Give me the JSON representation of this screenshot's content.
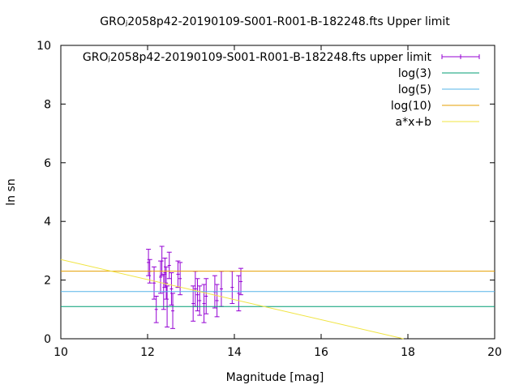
{
  "chart_data": {
    "type": "scatter",
    "title": "GROⱼ2058p42-20190109-S001-R001-B-182248.fts Upper limit",
    "xlabel": "Magnitude [mag]",
    "ylabel": "ln sn",
    "xlim": [
      10,
      20
    ],
    "ylim": [
      0,
      10
    ],
    "x_ticks": [
      "10",
      "12",
      "14",
      "16",
      "18",
      "20"
    ],
    "y_ticks": [
      "0",
      "2",
      "4",
      "6",
      "8",
      "10"
    ],
    "grid": false,
    "legend_position": "top-right",
    "series": [
      {
        "name": "GROⱼ2058p42-20190109-S001-R001-B-182248.fts upper limit",
        "style": "errorbars",
        "color": "#9400d3",
        "points": [
          {
            "x": 12.02,
            "y": 2.6,
            "err": 0.45
          },
          {
            "x": 12.05,
            "y": 2.3,
            "err": 0.4
          },
          {
            "x": 12.15,
            "y": 1.9,
            "err": 0.55
          },
          {
            "x": 12.2,
            "y": 1.0,
            "err": 0.45
          },
          {
            "x": 12.3,
            "y": 2.1,
            "err": 0.55
          },
          {
            "x": 12.33,
            "y": 2.65,
            "err": 0.5
          },
          {
            "x": 12.37,
            "y": 1.6,
            "err": 0.6
          },
          {
            "x": 12.4,
            "y": 2.25,
            "err": 0.5
          },
          {
            "x": 12.43,
            "y": 1.9,
            "err": 0.55
          },
          {
            "x": 12.45,
            "y": 1.1,
            "err": 0.7
          },
          {
            "x": 12.5,
            "y": 2.5,
            "err": 0.45
          },
          {
            "x": 12.55,
            "y": 1.7,
            "err": 0.55
          },
          {
            "x": 12.58,
            "y": 0.95,
            "err": 0.6
          },
          {
            "x": 12.7,
            "y": 2.2,
            "err": 0.45
          },
          {
            "x": 12.75,
            "y": 2.05,
            "err": 0.55
          },
          {
            "x": 13.05,
            "y": 1.2,
            "err": 0.6
          },
          {
            "x": 13.1,
            "y": 1.7,
            "err": 0.6
          },
          {
            "x": 13.15,
            "y": 1.5,
            "err": 0.55
          },
          {
            "x": 13.2,
            "y": 1.3,
            "err": 0.5
          },
          {
            "x": 13.3,
            "y": 1.2,
            "err": 0.65
          },
          {
            "x": 13.35,
            "y": 1.45,
            "err": 0.6
          },
          {
            "x": 13.55,
            "y": 1.6,
            "err": 0.55
          },
          {
            "x": 13.6,
            "y": 1.3,
            "err": 0.55
          },
          {
            "x": 13.7,
            "y": 1.7,
            "err": 0.6
          },
          {
            "x": 13.95,
            "y": 1.75,
            "err": 0.55
          },
          {
            "x": 14.1,
            "y": 1.55,
            "err": 0.6
          },
          {
            "x": 14.15,
            "y": 1.95,
            "err": 0.45
          }
        ]
      },
      {
        "name": "log(3)",
        "style": "hline",
        "color": "#009e73",
        "y": 1.0986
      },
      {
        "name": "log(5)",
        "style": "hline",
        "color": "#56b4e9",
        "y": 1.6094
      },
      {
        "name": "log(10)",
        "style": "hline",
        "color": "#e69f00",
        "y": 2.3026
      },
      {
        "name": "a*x+b",
        "style": "line",
        "color": "#f0e442",
        "x": [
          10,
          17.9
        ],
        "y": [
          2.7,
          0
        ]
      }
    ]
  }
}
